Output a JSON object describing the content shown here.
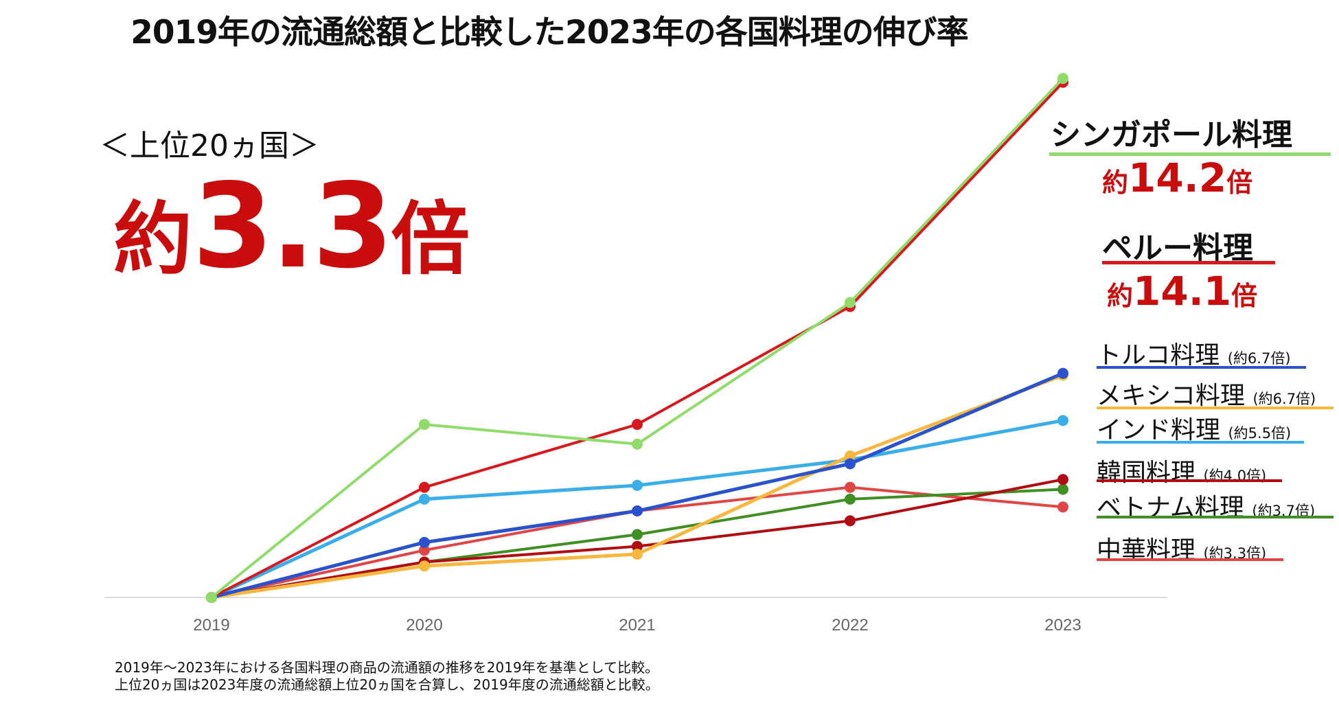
{
  "chart_data": {
    "type": "line",
    "title": "2019年の流通総額と比較した2023年の各国料理の伸び率",
    "categories": [
      "2019",
      "2020",
      "2021",
      "2022",
      "2023"
    ],
    "ylim": [
      1.0,
      14.5
    ],
    "grid": false,
    "legend_position": "right",
    "series": [
      {
        "name": "シンガポール料理",
        "ratio": "約14.2倍",
        "color": "#8fdc6a",
        "values": [
          1.0,
          5.4,
          4.9,
          8.5,
          14.2
        ]
      },
      {
        "name": "ペルー料理",
        "ratio": "約14.1倍",
        "color": "#d7191f",
        "values": [
          1.0,
          3.8,
          5.4,
          8.4,
          14.1
        ]
      },
      {
        "name": "トルコ料理",
        "ratio": "(約6.7倍)",
        "color": "#2952cc",
        "values": [
          1.0,
          2.4,
          3.2,
          4.4,
          6.7
        ]
      },
      {
        "name": "メキシコ料理",
        "ratio": "(約6.7倍)",
        "color": "#f8b840",
        "values": [
          1.0,
          1.8,
          2.1,
          4.6,
          6.65
        ]
      },
      {
        "name": "インド料理",
        "ratio": "(約5.5倍)",
        "color": "#3aaee8",
        "values": [
          1.0,
          3.5,
          3.85,
          4.5,
          5.5
        ]
      },
      {
        "name": "韓国料理",
        "ratio": "(約4.0倍)",
        "color": "#b00c12",
        "values": [
          1.0,
          1.9,
          2.3,
          2.95,
          4.0
        ]
      },
      {
        "name": "ベトナム料理",
        "ratio": "(約3.7倍)",
        "color": "#3f8f22",
        "values": [
          1.0,
          1.9,
          2.6,
          3.5,
          3.75
        ]
      },
      {
        "name": "中華料理",
        "ratio": "(約3.3倍)",
        "color": "#e04646",
        "values": [
          1.0,
          2.2,
          3.2,
          3.8,
          3.3
        ]
      }
    ]
  },
  "callout": {
    "label": "＜上位20ヵ国＞",
    "prefix": "約",
    "number": "3.3",
    "suffix": "倍"
  },
  "big_legend": [
    {
      "name": "シンガポール料理",
      "prefix": "約",
      "number": "14.2",
      "suffix": "倍"
    },
    {
      "name": "ペルー料理",
      "prefix": "約",
      "number": "14.1",
      "suffix": "倍"
    }
  ],
  "notes": [
    "2019年～2023年における各国料理の商品の流通額の推移を2019年を基準として比較。",
    "上位20ヵ国は2023年度の流通総額上位20ヵ国を合算し、2019年度の流通総額と比較。"
  ]
}
